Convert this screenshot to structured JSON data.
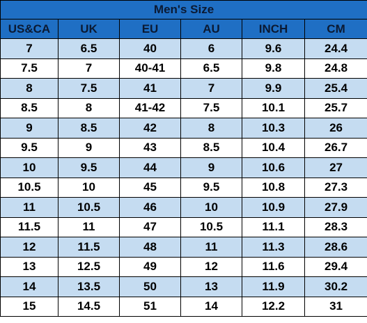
{
  "table": {
    "title": "Men's Size",
    "headers": [
      "US&CA",
      "UK",
      "EU",
      "AU",
      "INCH",
      "CM"
    ],
    "rows": [
      [
        "7",
        "6.5",
        "40",
        "6",
        "9.6",
        "24.4"
      ],
      [
        "7.5",
        "7",
        "40-41",
        "6.5",
        "9.8",
        "24.8"
      ],
      [
        "8",
        "7.5",
        "41",
        "7",
        "9.9",
        "25.4"
      ],
      [
        "8.5",
        "8",
        "41-42",
        "7.5",
        "10.1",
        "25.7"
      ],
      [
        "9",
        "8.5",
        "42",
        "8",
        "10.3",
        "26"
      ],
      [
        "9.5",
        "9",
        "43",
        "8.5",
        "10.4",
        "26.7"
      ],
      [
        "10",
        "9.5",
        "44",
        "9",
        "10.6",
        "27"
      ],
      [
        "10.5",
        "10",
        "45",
        "9.5",
        "10.8",
        "27.3"
      ],
      [
        "11",
        "10.5",
        "46",
        "10",
        "10.9",
        "27.9"
      ],
      [
        "11.5",
        "11",
        "47",
        "10.5",
        "11.1",
        "28.3"
      ],
      [
        "12",
        "11.5",
        "48",
        "11",
        "11.3",
        "28.6"
      ],
      [
        "13",
        "12.5",
        "49",
        "12",
        "11.6",
        "29.4"
      ],
      [
        "14",
        "13.5",
        "50",
        "13",
        "11.9",
        "30.2"
      ],
      [
        "15",
        "14.5",
        "51",
        "14",
        "12.2",
        "31"
      ]
    ],
    "colors": {
      "header_bg": "#1f6fc4",
      "shaded_row_bg": "#c5dcf1",
      "plain_row_bg": "#ffffff"
    }
  }
}
